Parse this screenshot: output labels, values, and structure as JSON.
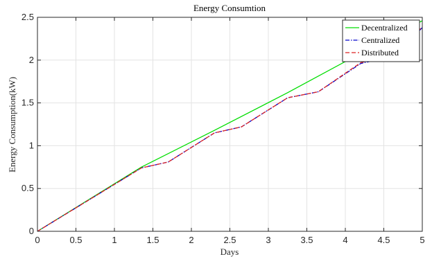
{
  "chart_data": {
    "type": "line",
    "title": "Energy Consumtion",
    "xlabel": "Days",
    "ylabel": "Energy Consumption(kW)",
    "xlim": [
      0,
      5
    ],
    "ylim": [
      0,
      2.5
    ],
    "xticks": [
      "0",
      "0.5",
      "1",
      "1.5",
      "2",
      "2.5",
      "3",
      "3.5",
      "4",
      "4.5",
      "5"
    ],
    "yticks": [
      "0",
      "0.5",
      "1",
      "1.5",
      "2",
      "2.5"
    ],
    "grid": true,
    "legend_position": "top-right",
    "series": [
      {
        "name": "Decentralized",
        "color": "#00dd00",
        "style": "solid",
        "x": [
          0,
          1.35,
          2.3,
          3.25,
          4.2,
          5
        ],
        "y": [
          0,
          0.75,
          1.18,
          1.62,
          2.08,
          2.46
        ]
      },
      {
        "name": "Centralized",
        "color": "#0000cc",
        "style": "dashdot",
        "x": [
          0,
          1.35,
          1.7,
          2.3,
          2.65,
          3.25,
          3.65,
          4.2,
          4.65,
          5
        ],
        "y": [
          0,
          0.74,
          0.81,
          1.15,
          1.22,
          1.56,
          1.63,
          1.96,
          2.05,
          2.38
        ]
      },
      {
        "name": "Distributed",
        "color": "#dd2222",
        "style": "dashed",
        "x": [
          0,
          1.35,
          1.7,
          2.3,
          2.65,
          3.25,
          3.65,
          4.2,
          4.65,
          5
        ],
        "y": [
          0,
          0.74,
          0.81,
          1.15,
          1.22,
          1.56,
          1.63,
          1.97,
          2.06,
          2.39
        ]
      }
    ]
  }
}
